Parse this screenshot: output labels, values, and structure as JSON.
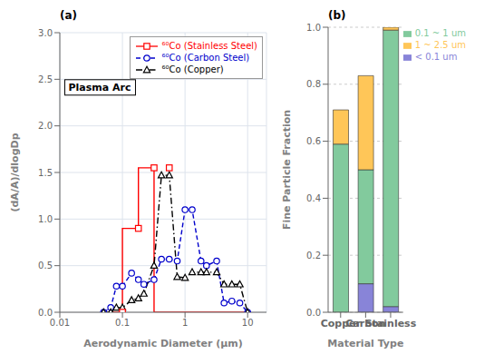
{
  "chart_data": [
    {
      "type": "line",
      "title": "(a)",
      "x_label": "Aerodynamic Diameter (μm)",
      "y_label": "(dA/A)/dlogDp",
      "log": "x",
      "grid": true,
      "legend": "upper right",
      "xlim": [
        0.01,
        20
      ],
      "ylim": [
        0.0,
        3.0
      ],
      "xticks": [
        0.01,
        0.1,
        1,
        10
      ],
      "yticks": [
        {
          "value": 0.0,
          "label": "0.0"
        },
        0.5,
        {
          "value": 1.0,
          "label": "1.0"
        },
        1.5,
        {
          "value": 2.0,
          "label": "2.0"
        },
        2.5,
        {
          "value": 3.0,
          "label": "3.0"
        }
      ],
      "annotations": [
        {
          "text": "Plasma Arc",
          "x": 0.012,
          "y": 2.33
        }
      ],
      "series": [
        {
          "name": "⁶⁰Co (Stainless Steel)",
          "color": "#ff0000",
          "line_style": "solid",
          "marker": "square",
          "x": [
            0.05,
            0.065,
            0.065,
            0.1,
            0.1,
            0.18,
            0.18,
            0.32,
            0.32,
            0.56,
            0.56,
            0.75,
            0.75,
            1.0,
            1.0,
            10.0
          ],
          "values": [
            0.0,
            0.0,
            0.0,
            0.0,
            0.9,
            0.9,
            1.55,
            1.55,
            0.0,
            0.0,
            0.0,
            0.0,
            0.0,
            0.0,
            0.0,
            0.0
          ],
          "marker_x": [
            0.1,
            0.18,
            0.32,
            0.56
          ],
          "marker_values": [
            0.0,
            0.9,
            1.55,
            1.55
          ]
        },
        {
          "name": "⁶⁰Co (Carbon Steel)",
          "color": "#0000cc",
          "line_style": "dashed",
          "marker": "circle",
          "x": [
            0.05,
            0.065,
            0.08,
            0.1,
            0.14,
            0.18,
            0.22,
            0.32,
            0.42,
            0.56,
            0.75,
            1.0,
            1.3,
            1.8,
            2.2,
            3.2,
            4.2,
            5.6,
            7.5,
            10.0
          ],
          "values": [
            0.0,
            0.05,
            0.28,
            0.28,
            0.42,
            0.35,
            0.3,
            0.35,
            0.57,
            0.57,
            0.55,
            1.1,
            1.1,
            0.55,
            0.5,
            0.55,
            0.1,
            0.12,
            0.1,
            0.0
          ]
        },
        {
          "name": "⁶⁰Co (Copper)",
          "color": "#000000",
          "line_style": "dashdot",
          "marker": "triangle",
          "x": [
            0.05,
            0.065,
            0.08,
            0.1,
            0.14,
            0.18,
            0.22,
            0.32,
            0.42,
            0.56,
            0.75,
            1.0,
            1.3,
            1.8,
            2.2,
            3.2,
            4.2,
            5.6,
            7.5,
            10.0
          ],
          "values": [
            0.0,
            0.0,
            0.05,
            0.05,
            0.13,
            0.15,
            0.2,
            0.5,
            1.47,
            1.47,
            0.38,
            0.37,
            0.43,
            0.43,
            0.43,
            0.43,
            0.3,
            0.3,
            0.3,
            0.0
          ]
        }
      ]
    },
    {
      "type": "bar",
      "title": "(b)",
      "x_label": "Material Type",
      "y_label": "Fine Particle Fraction",
      "stacked": true,
      "grid": true,
      "legend": "upper right",
      "categories": [
        "Copper",
        "Carbon",
        "Stainless"
      ],
      "ylim": [
        0.0,
        1.0
      ],
      "yticks": [
        {
          "value": 0.0,
          "label": "0.0"
        },
        0.2,
        0.4,
        0.6,
        0.8,
        {
          "value": 1.0,
          "label": "1.0"
        }
      ],
      "series": [
        {
          "name": "< 0.1 um",
          "color": "#8884d8",
          "values": [
            0.0,
            0.1,
            0.02
          ]
        },
        {
          "name": "0.1 ~ 1 um",
          "color": "#82ca9d",
          "values": [
            0.59,
            0.4,
            0.97
          ]
        },
        {
          "name": "1 ~ 2.5 um",
          "color": "#ffc658",
          "values": [
            0.12,
            0.33,
            0.01
          ]
        }
      ]
    }
  ]
}
